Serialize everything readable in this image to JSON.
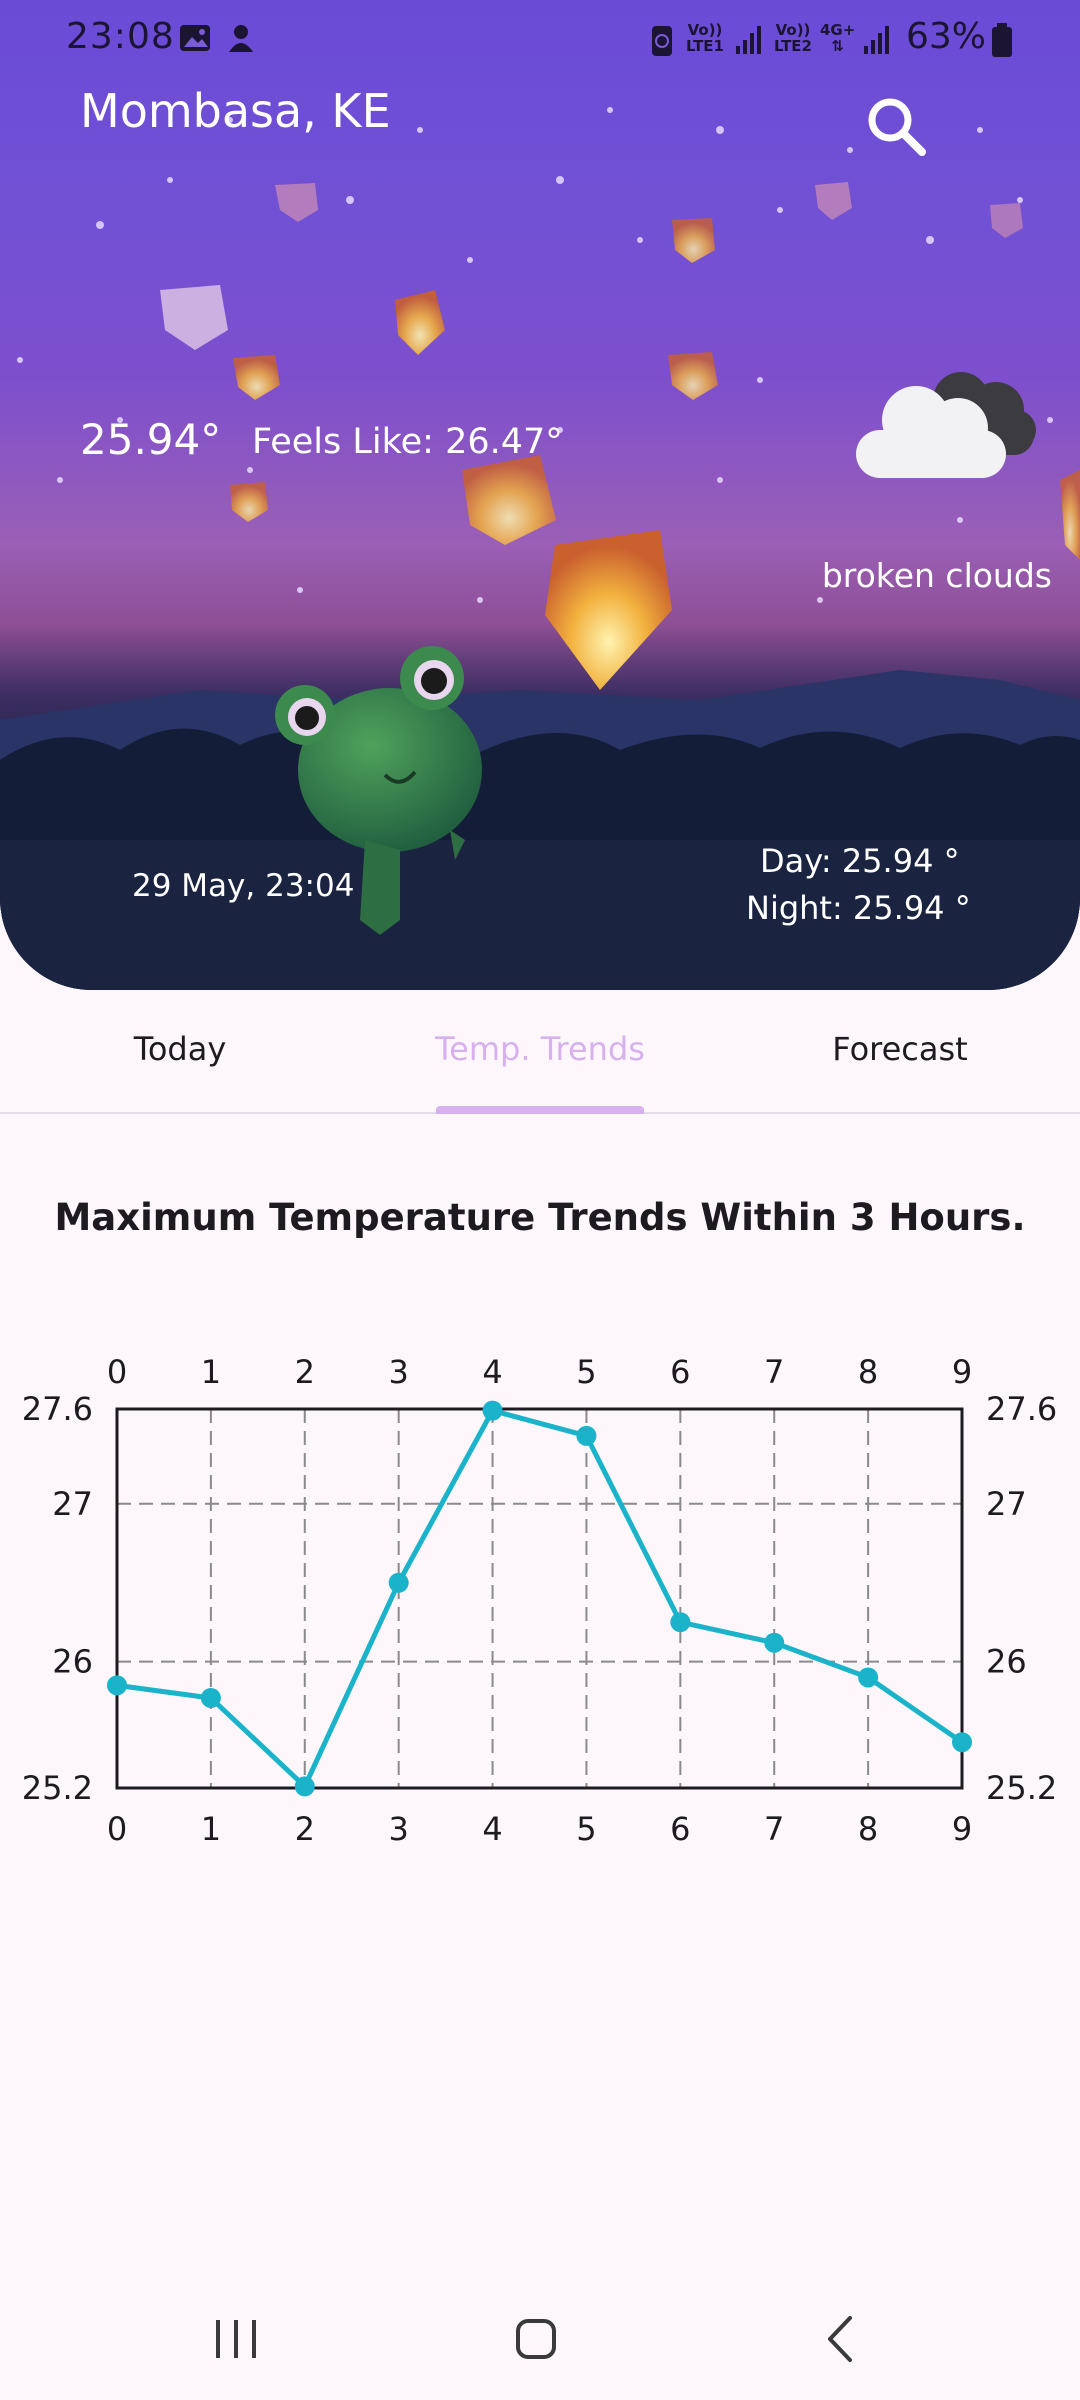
{
  "status_bar": {
    "time": "23:08",
    "net1": [
      "Vo))",
      "LTE1"
    ],
    "net2": [
      "Vo))",
      "LTE2"
    ],
    "net2_tech": "4G+",
    "battery": "63%",
    "icons": [
      "gallery-icon",
      "app-notification-icon",
      "battery-saver-icon",
      "signal-icon",
      "battery-icon"
    ]
  },
  "location": {
    "city": "Mombasa, KE"
  },
  "current": {
    "temperature": "25.94°",
    "feels_like": "Feels Like: 26.47°",
    "condition": "broken clouds",
    "condition_icon": "broken-clouds-icon",
    "datetime": "29 May, 23:04",
    "day": "Day: 25.94 °",
    "night": "Night: 25.94 °"
  },
  "tabs": [
    {
      "label": "Today",
      "active": false
    },
    {
      "label": "Temp. Trends",
      "active": true
    },
    {
      "label": "Forecast",
      "active": false
    }
  ],
  "colors": {
    "accent": "#d7b1ee",
    "line": "#1ab3c9",
    "hero_top": "#6a4bd6",
    "hero_bottom": "#15203c"
  },
  "chart_data": {
    "type": "line",
    "title": "Maximum Temperature Trends Within 3 Hours.",
    "x": [
      0,
      1,
      2,
      3,
      4,
      5,
      6,
      7,
      8,
      9
    ],
    "series": [
      {
        "values": [
          25.85,
          25.77,
          25.21,
          26.5,
          27.59,
          27.43,
          26.25,
          26.12,
          25.9,
          25.49
        ]
      }
    ],
    "xlim": [
      0,
      9
    ],
    "ylim": [
      25.2,
      27.6
    ],
    "y_ticks": [
      "25.2",
      "26",
      "27",
      "27.6"
    ],
    "x_ticks": [
      "0",
      "1",
      "2",
      "3",
      "4",
      "5",
      "6",
      "7",
      "8",
      "9"
    ],
    "grid": true
  }
}
